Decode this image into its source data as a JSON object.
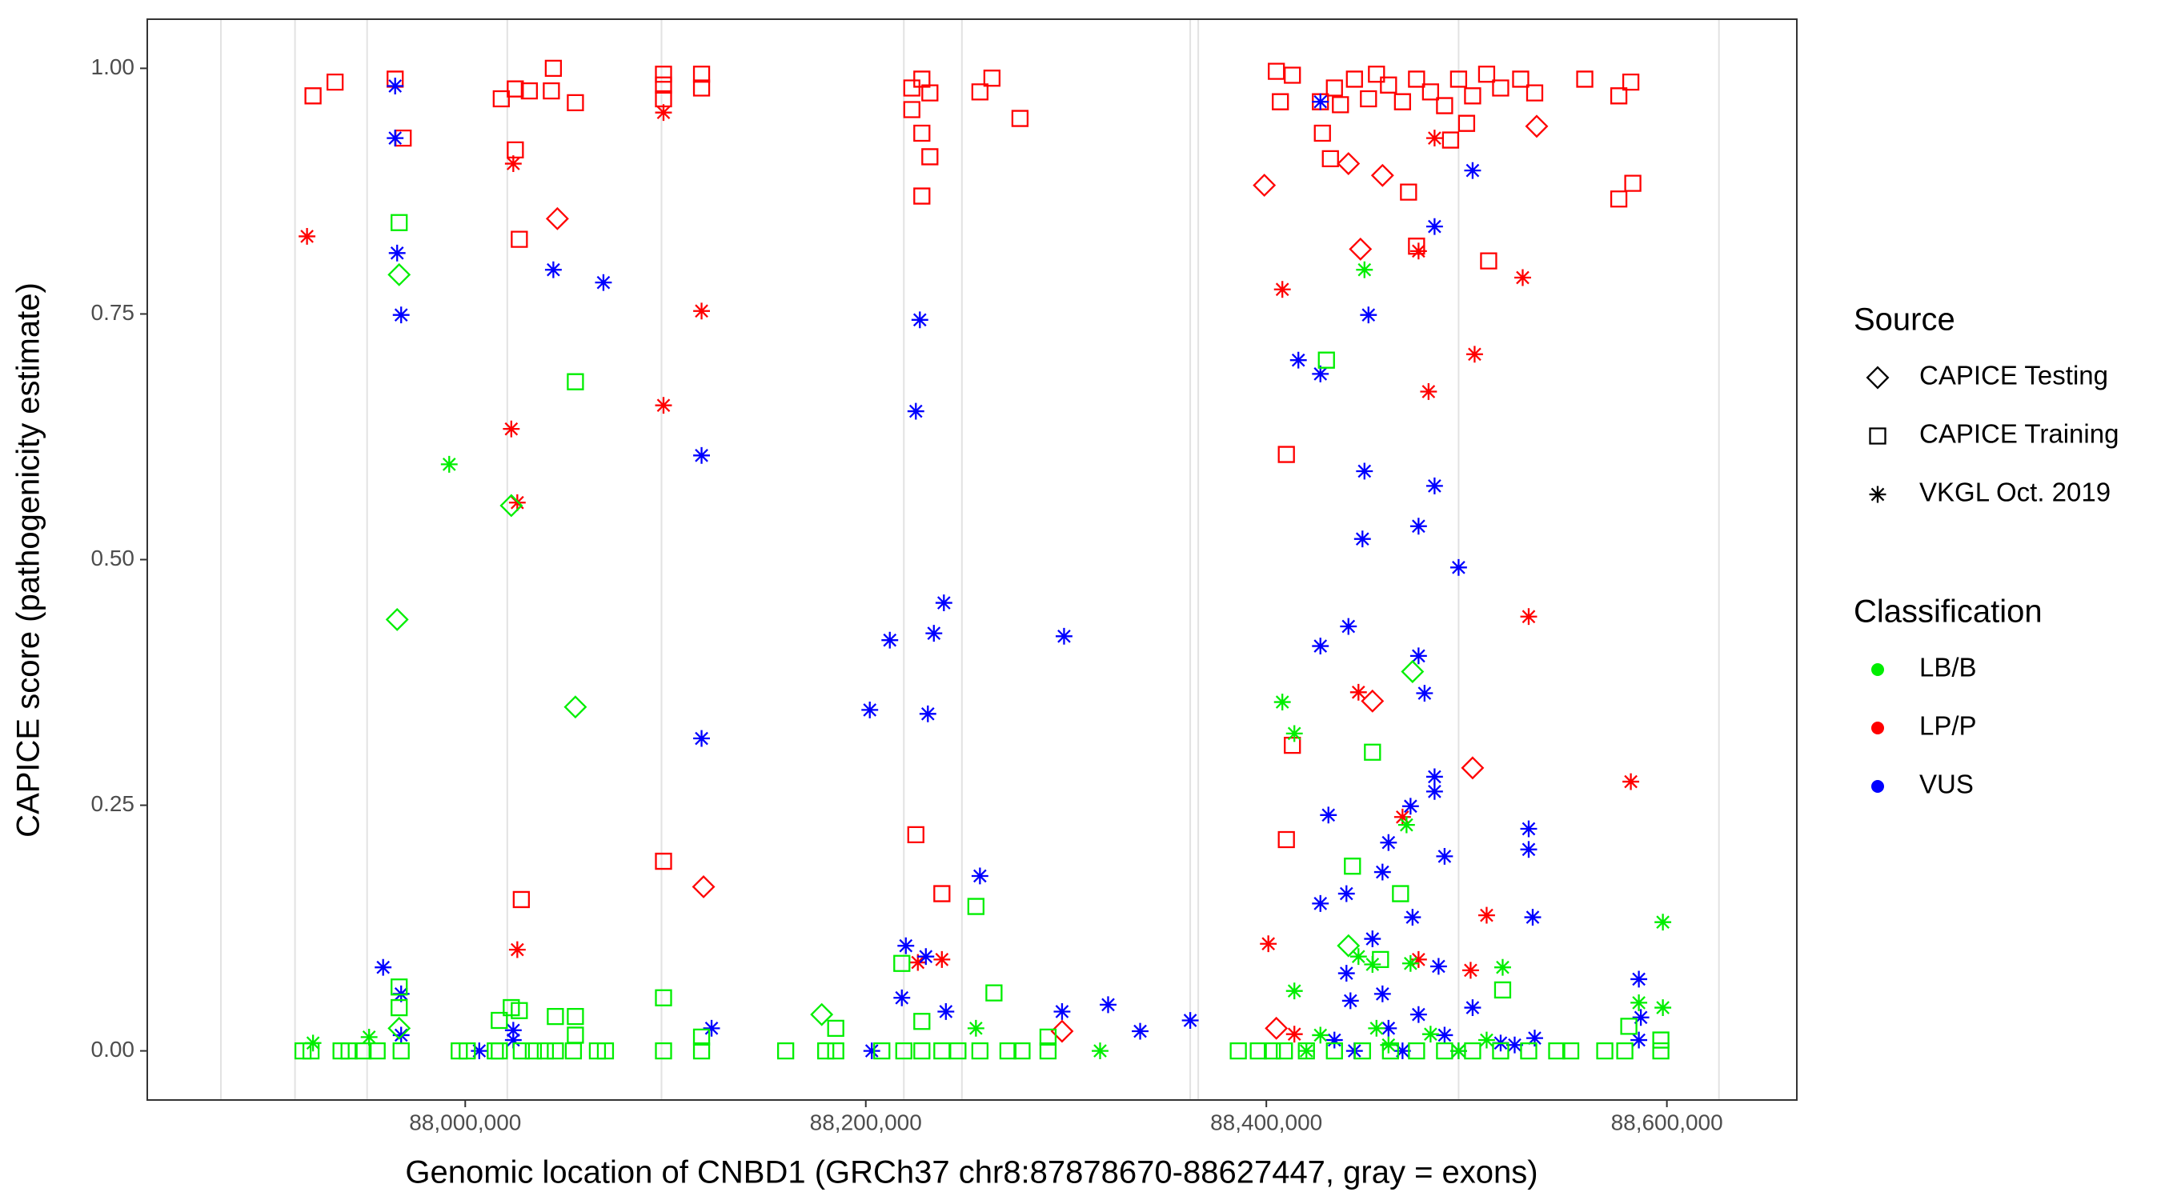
{
  "chart_data": {
    "type": "scatter",
    "x_label": "Genomic location of CNBD1 (GRCh37 chr8:87878670-88627447, gray = exons)",
    "y_label": "CAPICE score (pathogenicity estimate)",
    "xlim": [
      87841231,
      88664886
    ],
    "ylim": [
      -0.05,
      1.05
    ],
    "xticks": [
      {
        "value": 88000000,
        "label": "88,000,000"
      },
      {
        "value": 88200000,
        "label": "88,200,000"
      },
      {
        "value": 88400000,
        "label": "88,400,000"
      },
      {
        "value": 88600000,
        "label": "88,600,000"
      }
    ],
    "yticks": [
      {
        "value": 0,
        "label": "0.00"
      },
      {
        "value": 0.25,
        "label": "0.25"
      },
      {
        "value": 0.5,
        "label": "0.50"
      },
      {
        "value": 0.75,
        "label": "0.75"
      },
      {
        "value": 1,
        "label": "1.00"
      }
    ],
    "exons": [
      87878000,
      87915000,
      87951000,
      88021000,
      88098000,
      88219000,
      88248000,
      88362000,
      88366000,
      88496000,
      88626000
    ],
    "exon_color": "#e2e2e2",
    "source_legend": {
      "title": "Source",
      "items": [
        {
          "name": "CAPICE Testing",
          "shape": "diamond"
        },
        {
          "name": "CAPICE Training",
          "shape": "square"
        },
        {
          "name": "VKGL Oct. 2019",
          "shape": "asterisk"
        }
      ]
    },
    "classification_legend": {
      "title": "Classification",
      "items": [
        {
          "name": "LB/B",
          "color": "#00ee00"
        },
        {
          "name": "LP/P",
          "color": "#ff0000"
        },
        {
          "name": "VUS",
          "color": "#0000ff"
        }
      ]
    },
    "series": [
      {
        "source": "CAPICE Training",
        "classification": "LP/P",
        "x": [
          87924000,
          87935000,
          87965000,
          87969000,
          88018000,
          88025000,
          88025000,
          88027000,
          88032000,
          88043000,
          88044000,
          88055000,
          88099000,
          88099000,
          88099000,
          88118000,
          88118000,
          88028000,
          88099000,
          88223000,
          88228000,
          88223000,
          88228000,
          88228000,
          88232000,
          88232000,
          88257000,
          88263000,
          88277000,
          88225000,
          88238000,
          88405000,
          88407000,
          88413000,
          88427000,
          88428000,
          88434000,
          88437000,
          88444000,
          88451000,
          88455000,
          88461000,
          88468000,
          88475000,
          88482000,
          88489000,
          88496000,
          88503000,
          88510000,
          88517000,
          88527000,
          88534000,
          88559000,
          88576000,
          88582000,
          88576000,
          88583000,
          88432000,
          88471000,
          88475000,
          88511000,
          88410000,
          88413000,
          88410000,
          88492000,
          88500000
        ],
        "values": [
          0.972,
          0.986,
          0.989,
          0.929,
          0.969,
          0.979,
          0.917,
          0.826,
          0.977,
          0.977,
          1.0,
          0.965,
          0.994,
          0.983,
          0.969,
          0.994,
          0.98,
          0.154,
          0.193,
          0.98,
          0.989,
          0.958,
          0.934,
          0.87,
          0.975,
          0.91,
          0.976,
          0.99,
          0.949,
          0.22,
          0.16,
          0.997,
          0.966,
          0.993,
          0.966,
          0.934,
          0.98,
          0.963,
          0.989,
          0.969,
          0.994,
          0.983,
          0.966,
          0.989,
          0.976,
          0.962,
          0.989,
          0.972,
          0.994,
          0.98,
          0.989,
          0.975,
          0.989,
          0.972,
          0.986,
          0.867,
          0.883,
          0.908,
          0.874,
          0.819,
          0.804,
          0.607,
          0.311,
          0.215,
          0.927,
          0.944
        ]
      },
      {
        "source": "CAPICE Testing",
        "classification": "LP/P",
        "x": [
          88046000,
          88119000,
          88298000,
          88399000,
          88447000,
          88453000,
          88503000,
          88441000,
          88458000,
          88405000,
          88535000
        ],
        "values": [
          0.847,
          0.167,
          0.02,
          0.881,
          0.816,
          0.356,
          0.288,
          0.903,
          0.891,
          0.023,
          0.941
        ]
      },
      {
        "source": "VKGL Oct. 2019",
        "classification": "LP/P",
        "x": [
          87921000,
          88024000,
          88023000,
          88026000,
          88026000,
          88099000,
          88099000,
          88118000,
          88226000,
          88238000,
          88408000,
          88401000,
          88446000,
          88476000,
          88481000,
          88504000,
          88528000,
          88531000,
          88510000,
          88582000,
          88502000,
          88484000,
          88414000,
          88468000,
          88476000
        ],
        "values": [
          0.829,
          0.903,
          0.633,
          0.558,
          0.103,
          0.955,
          0.657,
          0.753,
          0.09,
          0.093,
          0.775,
          0.109,
          0.365,
          0.814,
          0.671,
          0.709,
          0.787,
          0.442,
          0.138,
          0.274,
          0.082,
          0.929,
          0.017,
          0.238,
          0.093
        ]
      },
      {
        "source": "VKGL Oct. 2019",
        "classification": "VUS",
        "x": [
          87965000,
          87965000,
          87966000,
          87968000,
          87959000,
          87968000,
          87968000,
          88044000,
          88069000,
          88118000,
          88118000,
          88123000,
          88007000,
          88202000,
          88212000,
          88227000,
          88225000,
          88231000,
          88234000,
          88239000,
          88220000,
          88230000,
          88257000,
          88299000,
          88298000,
          88321000,
          88337000,
          88362000,
          88218000,
          88240000,
          88203000,
          88427000,
          88416000,
          88427000,
          88451000,
          88449000,
          88503000,
          88484000,
          88484000,
          88476000,
          88496000,
          88448000,
          88441000,
          88427000,
          88476000,
          88479000,
          88484000,
          88484000,
          88472000,
          88431000,
          88461000,
          88531000,
          88531000,
          88489000,
          88440000,
          88427000,
          88458000,
          88473000,
          88533000,
          88453000,
          88486000,
          88586000,
          88587000,
          88586000,
          88440000,
          88442000,
          88458000,
          88503000,
          88476000,
          88461000,
          88489000,
          88517000,
          88434000,
          88524000,
          88534000,
          88444000,
          88468000,
          88496000,
          88024000,
          88024000
        ],
        "values": [
          0.982,
          0.929,
          0.812,
          0.749,
          0.085,
          0.058,
          0.016,
          0.795,
          0.782,
          0.606,
          0.318,
          0.023,
          0,
          0.347,
          0.418,
          0.744,
          0.651,
          0.343,
          0.425,
          0.456,
          0.107,
          0.096,
          0.178,
          0.422,
          0.04,
          0.047,
          0.02,
          0.031,
          0.054,
          0.04,
          0,
          0.966,
          0.703,
          0.689,
          0.749,
          0.59,
          0.896,
          0.839,
          0.575,
          0.534,
          0.492,
          0.521,
          0.432,
          0.412,
          0.402,
          0.364,
          0.279,
          0.264,
          0.249,
          0.24,
          0.212,
          0.226,
          0.205,
          0.198,
          0.16,
          0.15,
          0.182,
          0.136,
          0.136,
          0.114,
          0.086,
          0.073,
          0.034,
          0.011,
          0.079,
          0.051,
          0.058,
          0.044,
          0.037,
          0.023,
          0.016,
          0.008,
          0.011,
          0.006,
          0.013,
          0,
          0,
          0,
          0.021,
          0.011
        ]
      },
      {
        "source": "CAPICE Training",
        "classification": "LB/B",
        "x": [
          87919000,
          87923000,
          87938000,
          87942000,
          87949000,
          87956000,
          87968000,
          87997000,
          88001000,
          88015000,
          88017000,
          88028000,
          88034000,
          88040000,
          88045000,
          88054000,
          88066000,
          88070000,
          88099000,
          88118000,
          88160000,
          88180000,
          88185000,
          88208000,
          88219000,
          88228000,
          88238000,
          88246000,
          88257000,
          88271000,
          88278000,
          88291000,
          88386000,
          88396000,
          88403000,
          88409000,
          88420000,
          88434000,
          88448000,
          88462000,
          88475000,
          88489000,
          88503000,
          88517000,
          88531000,
          88545000,
          88552000,
          88569000,
          88579000,
          88597000,
          87967000,
          88055000,
          87967000,
          87967000,
          88017000,
          88023000,
          88027000,
          88045000,
          88055000,
          88055000,
          88099000,
          88118000,
          88185000,
          88218000,
          88228000,
          88255000,
          88264000,
          88291000,
          88430000,
          88453000,
          88443000,
          88467000,
          88457000,
          88518000,
          88581000,
          88597000
        ],
        "values": [
          0,
          0,
          0,
          0,
          0,
          0,
          0,
          0,
          0,
          0,
          0,
          0,
          0,
          0,
          0,
          0,
          0,
          0,
          0,
          0,
          0,
          0,
          0,
          0,
          0,
          0,
          0,
          0,
          0,
          0,
          0,
          0,
          0,
          0,
          0,
          0,
          0,
          0,
          0,
          0,
          0,
          0,
          0,
          0,
          0,
          0,
          0,
          0,
          0,
          0,
          0.843,
          0.681,
          0.065,
          0.044,
          0.031,
          0.044,
          0.041,
          0.035,
          0.035,
          0.016,
          0.054,
          0.014,
          0.023,
          0.089,
          0.03,
          0.147,
          0.059,
          0.014,
          0.703,
          0.304,
          0.188,
          0.16,
          0.093,
          0.062,
          0.025,
          0.011
        ]
      },
      {
        "source": "CAPICE Testing",
        "classification": "LB/B",
        "x": [
          87967000,
          87966000,
          88023000,
          88055000,
          88178000,
          88473000,
          88441000,
          87967000
        ],
        "values": [
          0.79,
          0.439,
          0.555,
          0.35,
          0.037,
          0.386,
          0.107,
          0.023
        ]
      },
      {
        "source": "VKGL Oct. 2019",
        "classification": "LB/B",
        "x": [
          87924000,
          87952000,
          87992000,
          88449000,
          88408000,
          88414000,
          88470000,
          88518000,
          88598000,
          88586000,
          88598000,
          88414000,
          88446000,
          88453000,
          88472000,
          88255000,
          88317000,
          88427000,
          88455000,
          88482000,
          88510000,
          88461000,
          88420000,
          88496000
        ],
        "values": [
          0.008,
          0.014,
          0.597,
          0.795,
          0.355,
          0.323,
          0.23,
          0.085,
          0.131,
          0.049,
          0.044,
          0.061,
          0.096,
          0.088,
          0.089,
          0.023,
          0,
          0.016,
          0.023,
          0.017,
          0.011,
          0.006,
          0,
          0
        ]
      }
    ]
  }
}
